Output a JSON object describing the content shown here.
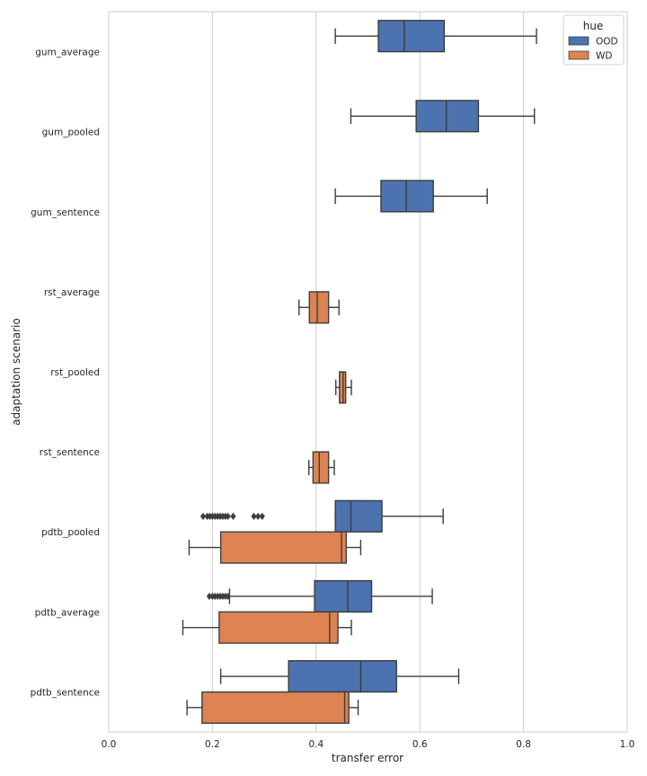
{
  "chart_data": {
    "type": "boxplot",
    "orientation": "horizontal",
    "xlabel": "transfer error",
    "ylabel": "adaptation scenario",
    "xlim": [
      0.0,
      1.0
    ],
    "xticks": [
      0.0,
      0.2,
      0.4,
      0.6,
      0.8,
      1.0
    ],
    "xtick_labels": [
      "0.0",
      "0.2",
      "0.4",
      "0.6",
      "0.8",
      "1.0"
    ],
    "grid": "vertical",
    "legend": {
      "title": "hue",
      "position": "top-right",
      "entries": [
        {
          "name": "OOD",
          "color": "#4c72b0"
        },
        {
          "name": "WD",
          "color": "#dd8452"
        }
      ]
    },
    "categories": [
      "gum_average",
      "gum_pooled",
      "gum_sentence",
      "rst_average",
      "rst_pooled",
      "rst_sentence",
      "pdtb_pooled",
      "pdtb_average",
      "pdtb_sentence"
    ],
    "boxes": [
      {
        "category": "gum_average",
        "hue": "OOD",
        "whislo": 0.437,
        "q1": 0.52,
        "med": 0.57,
        "q3": 0.647,
        "whishi": 0.825,
        "fliers": []
      },
      {
        "category": "gum_pooled",
        "hue": "OOD",
        "whislo": 0.467,
        "q1": 0.593,
        "med": 0.651,
        "q3": 0.713,
        "whishi": 0.821,
        "fliers": []
      },
      {
        "category": "gum_sentence",
        "hue": "OOD",
        "whislo": 0.437,
        "q1": 0.525,
        "med": 0.574,
        "q3": 0.626,
        "whishi": 0.73,
        "fliers": []
      },
      {
        "category": "rst_average",
        "hue": "WD",
        "whislo": 0.367,
        "q1": 0.387,
        "med": 0.402,
        "q3": 0.424,
        "whishi": 0.444,
        "fliers": []
      },
      {
        "category": "rst_pooled",
        "hue": "WD",
        "whislo": 0.438,
        "q1": 0.445,
        "med": 0.452,
        "q3": 0.457,
        "whishi": 0.468,
        "fliers": []
      },
      {
        "category": "rst_sentence",
        "hue": "WD",
        "whislo": 0.386,
        "q1": 0.394,
        "med": 0.406,
        "q3": 0.424,
        "whishi": 0.435,
        "fliers": []
      },
      {
        "category": "pdtb_pooled",
        "hue": "OOD",
        "whislo": 0.437,
        "q1": 0.437,
        "med": 0.467,
        "q3": 0.527,
        "whishi": 0.645,
        "fliers": [
          0.182,
          0.19,
          0.195,
          0.2,
          0.205,
          0.21,
          0.215,
          0.22,
          0.225,
          0.23,
          0.24,
          0.28,
          0.288,
          0.296
        ]
      },
      {
        "category": "pdtb_pooled",
        "hue": "WD",
        "whislo": 0.155,
        "q1": 0.216,
        "med": 0.449,
        "q3": 0.458,
        "whishi": 0.486,
        "fliers": []
      },
      {
        "category": "pdtb_average",
        "hue": "OOD",
        "whislo": 0.233,
        "q1": 0.397,
        "med": 0.461,
        "q3": 0.507,
        "whishi": 0.624,
        "fliers": [
          0.194,
          0.2,
          0.205,
          0.21,
          0.215,
          0.22,
          0.225,
          0.23
        ]
      },
      {
        "category": "pdtb_average",
        "hue": "WD",
        "whislo": 0.143,
        "q1": 0.213,
        "med": 0.426,
        "q3": 0.442,
        "whishi": 0.468,
        "fliers": []
      },
      {
        "category": "pdtb_sentence",
        "hue": "OOD",
        "whislo": 0.216,
        "q1": 0.347,
        "med": 0.486,
        "q3": 0.555,
        "whishi": 0.675,
        "fliers": []
      },
      {
        "category": "pdtb_sentence",
        "hue": "WD",
        "whislo": 0.151,
        "q1": 0.18,
        "med": 0.455,
        "q3": 0.463,
        "whishi": 0.481,
        "fliers": []
      }
    ]
  }
}
